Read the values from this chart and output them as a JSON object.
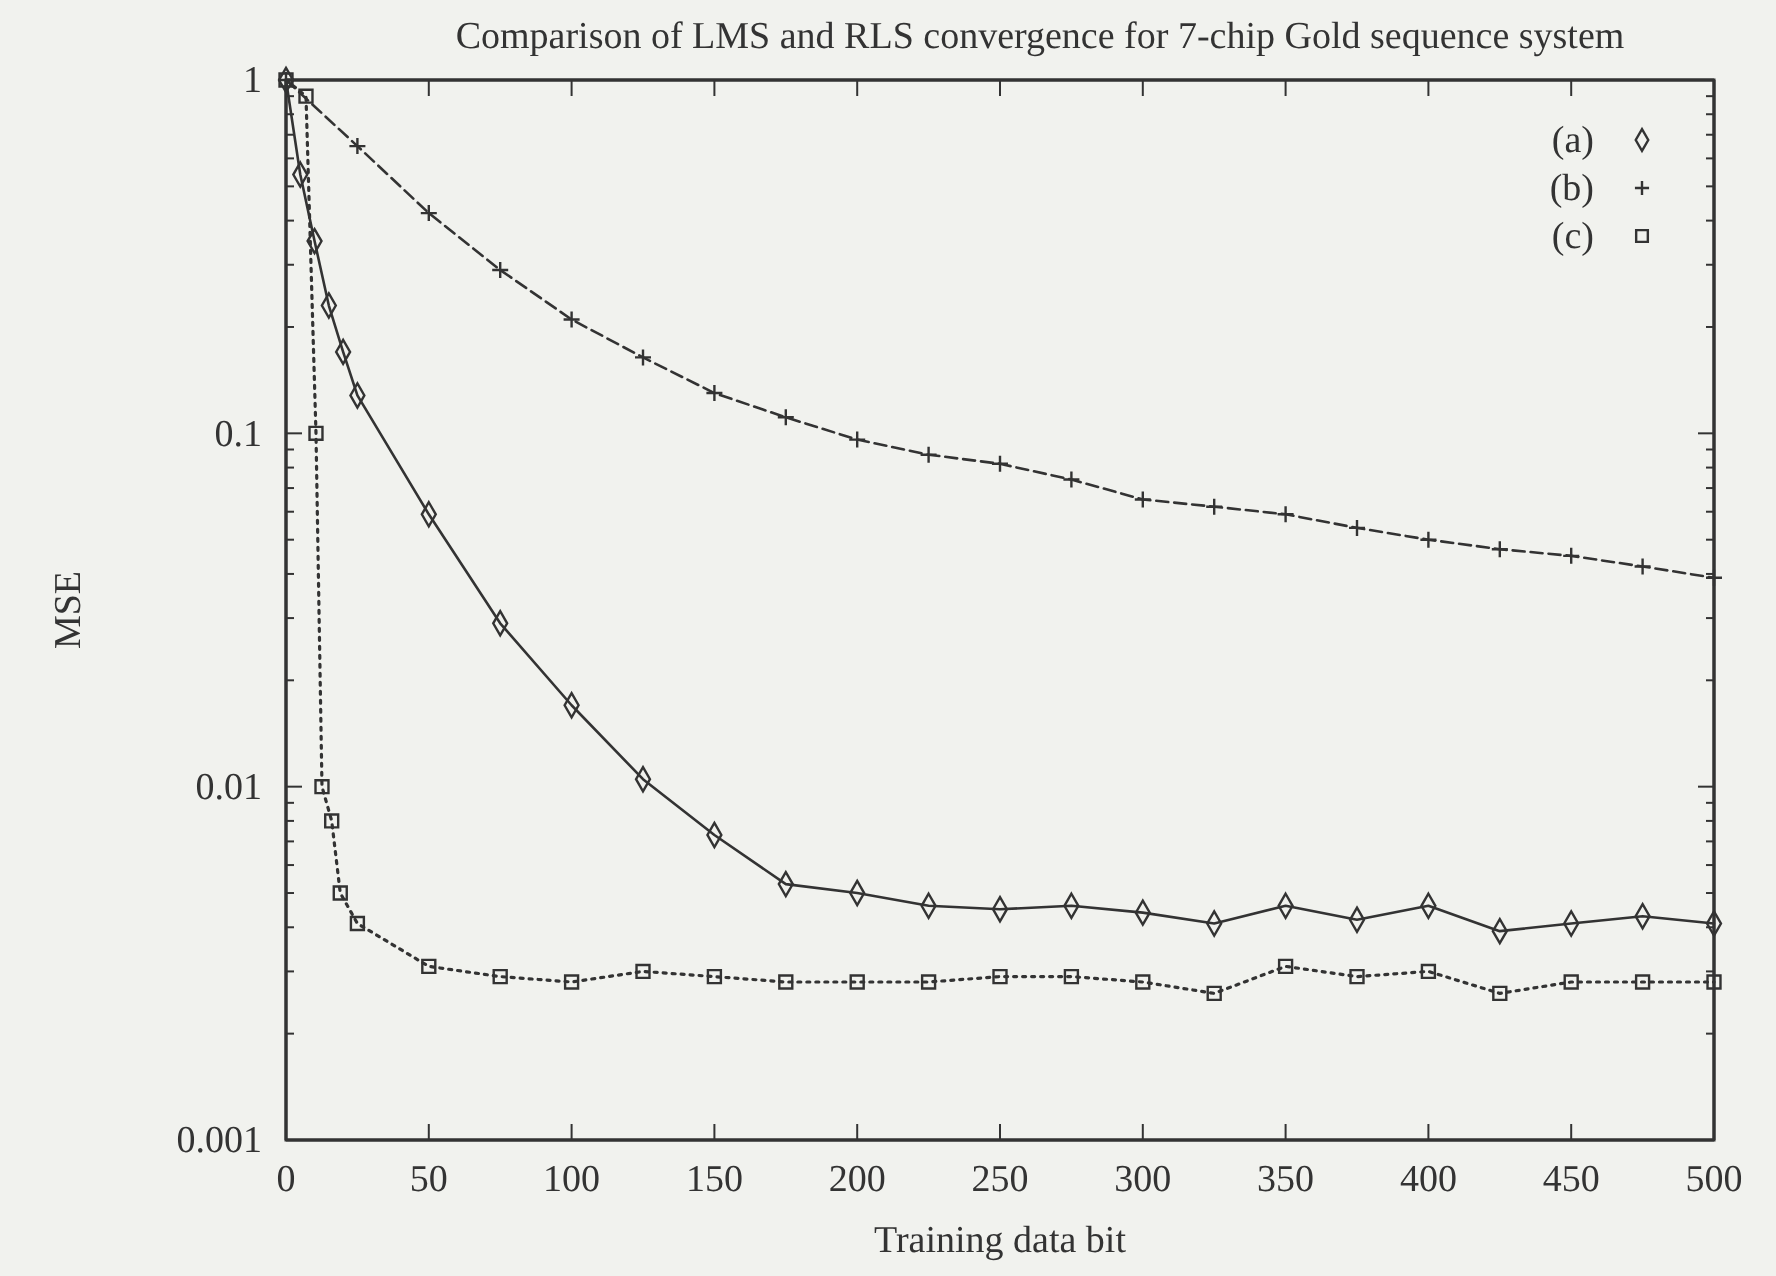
{
  "chart_data": {
    "type": "line",
    "title": "Comparison of LMS and RLS convergence for 7-chip Gold sequence system",
    "xlabel": "Training data bit",
    "ylabel": "MSE",
    "log": "y",
    "xlim": [
      0,
      500
    ],
    "xticks": [
      0,
      50,
      100,
      150,
      200,
      250,
      300,
      350,
      400,
      450,
      500
    ],
    "ylim": [
      0.001,
      1
    ],
    "yticks": [
      0.001,
      {
        "value": 0.002,
        "label": null
      },
      {
        "value": 0.003,
        "label": null
      },
      {
        "value": 0.004,
        "label": null
      },
      {
        "value": 0.005,
        "label": null
      },
      {
        "value": 0.006,
        "label": null
      },
      {
        "value": 0.007,
        "label": null
      },
      {
        "value": 0.008,
        "label": null
      },
      {
        "value": 0.009,
        "label": null
      },
      0.01,
      {
        "value": 0.02,
        "label": null
      },
      {
        "value": 0.03,
        "label": null
      },
      {
        "value": 0.04,
        "label": null
      },
      {
        "value": 0.05,
        "label": null
      },
      {
        "value": 0.06,
        "label": null
      },
      {
        "value": 0.07,
        "label": null
      },
      {
        "value": 0.08,
        "label": null
      },
      {
        "value": 0.09,
        "label": null
      },
      0.1,
      {
        "value": 0.2,
        "label": null
      },
      {
        "value": 0.3,
        "label": null
      },
      {
        "value": 0.4,
        "label": null
      },
      {
        "value": 0.5,
        "label": null
      },
      {
        "value": 0.6,
        "label": null
      },
      {
        "value": 0.7,
        "label": null
      },
      {
        "value": 0.8,
        "label": null
      },
      {
        "value": 0.9,
        "label": null
      },
      1
    ],
    "grid": false,
    "legend": "top right",
    "series": [
      {
        "name": "(a)",
        "color": "#333333",
        "marker": "diamond",
        "line_style": "solid",
        "x": [
          0,
          5,
          10,
          15,
          20,
          25,
          50,
          75,
          100,
          125,
          150,
          175,
          200,
          225,
          250,
          275,
          300,
          325,
          350,
          375,
          400,
          425,
          450,
          475,
          500
        ],
        "values": [
          1,
          0.54,
          0.35,
          0.23,
          0.17,
          0.128,
          0.059,
          0.029,
          0.017,
          0.0105,
          0.0073,
          0.0053,
          0.005,
          0.0046,
          0.0045,
          0.0046,
          0.0044,
          0.0041,
          0.0046,
          0.0042,
          0.0046,
          0.0039,
          0.0041,
          0.0043,
          0.0041
        ]
      },
      {
        "name": "(b)",
        "color": "#333333",
        "marker": "cross",
        "line_style": "dashed",
        "x": [
          0,
          25,
          50,
          75,
          100,
          125,
          150,
          175,
          200,
          225,
          250,
          275,
          300,
          325,
          350,
          375,
          400,
          425,
          450,
          475,
          500
        ],
        "values": [
          1,
          0.65,
          0.42,
          0.29,
          0.21,
          0.164,
          0.13,
          0.111,
          0.096,
          0.087,
          0.082,
          0.074,
          0.065,
          0.062,
          0.059,
          0.054,
          0.05,
          0.047,
          0.045,
          0.042,
          0.039
        ]
      },
      {
        "name": "(c)",
        "color": "#333333",
        "marker": "square",
        "line_style": "dotted",
        "x": [
          0,
          7,
          10.5,
          12.6,
          16,
          19,
          25,
          50,
          75,
          100,
          125,
          150,
          175,
          200,
          225,
          250,
          275,
          300,
          325,
          350,
          375,
          400,
          425,
          450,
          475,
          500
        ],
        "values": [
          1,
          0.9,
          0.1,
          0.01,
          0.008,
          0.005,
          0.0041,
          0.0031,
          0.0029,
          0.0028,
          0.003,
          0.0029,
          0.0028,
          0.0028,
          0.0028,
          0.0029,
          0.0029,
          0.0028,
          0.0026,
          0.0031,
          0.0029,
          0.003,
          0.0026,
          0.0028,
          0.0028,
          0.0028
        ]
      }
    ]
  }
}
